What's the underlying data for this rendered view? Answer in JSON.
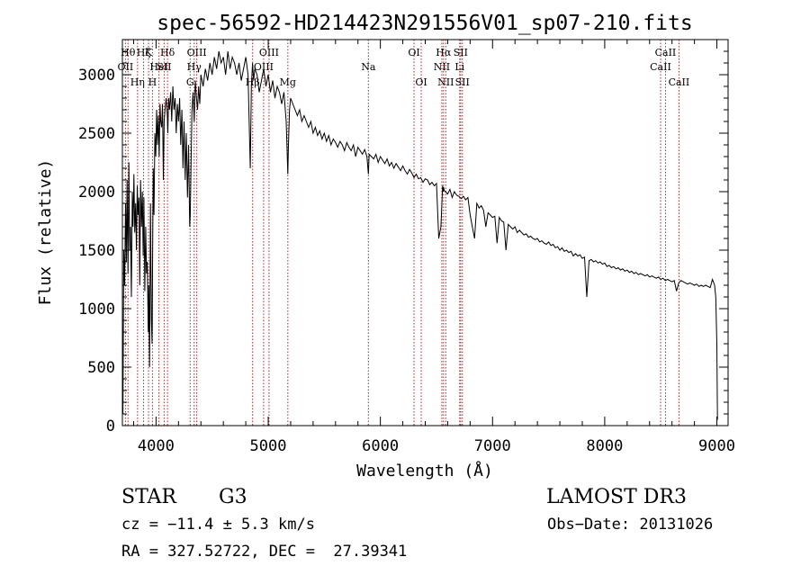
{
  "chart_data": {
    "type": "line",
    "title": "spec-56592-HD214423N291556V01_sp07-210.fits",
    "xlabel": "Wavelength (Å)",
    "ylabel": "Flux (relative)",
    "xlim": [
      3700,
      9100
    ],
    "ylim": [
      0,
      3300
    ],
    "xticks": [
      4000,
      5000,
      6000,
      7000,
      8000,
      9000
    ],
    "yticks": [
      0,
      500,
      1000,
      1500,
      2000,
      2500,
      3000
    ],
    "grid": false,
    "series": [
      {
        "name": "spectrum",
        "x": [
          3700,
          3705,
          3712,
          3720,
          3728,
          3735,
          3742,
          3750,
          3758,
          3765,
          3772,
          3780,
          3788,
          3795,
          3803,
          3810,
          3818,
          3825,
          3832,
          3840,
          3848,
          3855,
          3862,
          3870,
          3878,
          3885,
          3892,
          3900,
          3908,
          3915,
          3922,
          3930,
          3935,
          3942,
          3950,
          3958,
          3965,
          3970,
          3975,
          3982,
          3990,
          3998,
          4005,
          4012,
          4020,
          4028,
          4035,
          4042,
          4050,
          4058,
          4065,
          4072,
          4080,
          4090,
          4100,
          4105,
          4112,
          4120,
          4130,
          4140,
          4150,
          4160,
          4170,
          4180,
          4190,
          4200,
          4210,
          4220,
          4230,
          4240,
          4250,
          4260,
          4270,
          4280,
          4290,
          4300,
          4305,
          4310,
          4320,
          4330,
          4340,
          4350,
          4360,
          4370,
          4380,
          4390,
          4400,
          4420,
          4440,
          4460,
          4480,
          4500,
          4520,
          4540,
          4560,
          4580,
          4600,
          4620,
          4640,
          4660,
          4680,
          4700,
          4720,
          4740,
          4760,
          4780,
          4800,
          4820,
          4840,
          4850,
          4860,
          4870,
          4880,
          4900,
          4920,
          4940,
          4960,
          4980,
          5000,
          5020,
          5040,
          5060,
          5080,
          5100,
          5120,
          5140,
          5160,
          5170,
          5175,
          5180,
          5190,
          5200,
          5220,
          5240,
          5260,
          5280,
          5300,
          5320,
          5340,
          5360,
          5380,
          5400,
          5420,
          5440,
          5460,
          5480,
          5500,
          5520,
          5540,
          5560,
          5580,
          5600,
          5620,
          5640,
          5660,
          5680,
          5700,
          5720,
          5740,
          5760,
          5780,
          5800,
          5820,
          5840,
          5860,
          5880,
          5893,
          5900,
          5920,
          5940,
          5960,
          5980,
          6000,
          6020,
          6040,
          6060,
          6080,
          6100,
          6120,
          6140,
          6160,
          6180,
          6200,
          6220,
          6240,
          6260,
          6280,
          6300,
          6320,
          6340,
          6360,
          6380,
          6400,
          6420,
          6440,
          6460,
          6480,
          6500,
          6520,
          6540,
          6555,
          6560,
          6563,
          6570,
          6580,
          6600,
          6620,
          6640,
          6660,
          6680,
          6700,
          6720,
          6740,
          6760,
          6780,
          6800,
          6820,
          6840,
          6860,
          6870,
          6880,
          6900,
          6920,
          6940,
          6960,
          6980,
          7000,
          7020,
          7040,
          7060,
          7080,
          7100,
          7120,
          7140,
          7160,
          7180,
          7200,
          7220,
          7240,
          7260,
          7280,
          7300,
          7320,
          7340,
          7360,
          7380,
          7400,
          7420,
          7440,
          7460,
          7480,
          7500,
          7520,
          7540,
          7560,
          7580,
          7600,
          7620,
          7640,
          7660,
          7680,
          7700,
          7720,
          7740,
          7760,
          7780,
          7800,
          7820,
          7840,
          7860,
          7880,
          7900,
          7920,
          7940,
          7960,
          7980,
          8000,
          8020,
          8040,
          8060,
          8080,
          8100,
          8120,
          8140,
          8160,
          8180,
          8200,
          8220,
          8240,
          8260,
          8280,
          8300,
          8320,
          8340,
          8360,
          8380,
          8400,
          8420,
          8440,
          8460,
          8480,
          8500,
          8520,
          8540,
          8560,
          8580,
          8600,
          8620,
          8640,
          8660,
          8680,
          8700,
          8720,
          8740,
          8760,
          8780,
          8800,
          8820,
          8840,
          8860,
          8880,
          8900,
          8920,
          8940,
          8960,
          8980,
          8990,
          9000,
          9005
        ],
        "y": [
          900,
          100,
          1500,
          1200,
          1900,
          1400,
          2100,
          1300,
          2250,
          1500,
          1700,
          1100,
          2000,
          1700,
          2150,
          1650,
          1900,
          1500,
          2050,
          1800,
          1950,
          1200,
          2100,
          1700,
          2000,
          1450,
          1950,
          1150,
          1700,
          1300,
          1400,
          800,
          1200,
          500,
          1900,
          900,
          700,
          1600,
          2200,
          1800,
          2500,
          2300,
          2700,
          2400,
          2650,
          2300,
          2750,
          2600,
          2550,
          2750,
          2100,
          2600,
          2700,
          2800,
          2650,
          2500,
          2800,
          2700,
          2850,
          2600,
          2900,
          2700,
          2800,
          2500,
          2750,
          2600,
          2800,
          2400,
          2700,
          2200,
          2600,
          2100,
          2500,
          1950,
          2400,
          1700,
          1800,
          2100,
          2700,
          2850,
          2600,
          2950,
          2800,
          2700,
          2900,
          2750,
          3000,
          2900,
          3050,
          2950,
          3100,
          3000,
          3150,
          3050,
          3200,
          3100,
          3150,
          3000,
          3200,
          3050,
          3150,
          3100,
          3000,
          3100,
          2950,
          3050,
          3150,
          3000,
          2200,
          2900,
          3100,
          2950,
          3050,
          3000,
          2850,
          2950,
          3050,
          2900,
          3000,
          2850,
          2950,
          2800,
          2900,
          2850,
          2750,
          2850,
          2600,
          2300,
          2150,
          2400,
          2700,
          2800,
          2750,
          2700,
          2650,
          2700,
          2600,
          2650,
          2600,
          2550,
          2600,
          2500,
          2550,
          2480,
          2520,
          2450,
          2500,
          2430,
          2480,
          2400,
          2450,
          2420,
          2380,
          2430,
          2400,
          2350,
          2420,
          2380,
          2350,
          2400,
          2300,
          2380,
          2350,
          2320,
          2360,
          2300,
          2150,
          2320,
          2300,
          2280,
          2320,
          2250,
          2300,
          2270,
          2240,
          2280,
          2220,
          2250,
          2200,
          2240,
          2210,
          2180,
          2220,
          2180,
          2150,
          2190,
          2160,
          2120,
          2150,
          2110,
          2120,
          2080,
          2110,
          2100,
          2060,
          2080,
          2050,
          2070,
          1600,
          1700,
          2050,
          2000,
          2040,
          2010,
          2000,
          1980,
          2020,
          1950,
          2000,
          1970,
          1960,
          1940,
          1960,
          1930,
          1950,
          1800,
          1700,
          1600,
          1900,
          1880,
          1860,
          1880,
          1840,
          1700,
          1820,
          1800,
          1780,
          1790,
          1560,
          1780,
          1750,
          1740,
          1500,
          1720,
          1700,
          1680,
          1700,
          1650,
          1670,
          1650,
          1630,
          1640,
          1610,
          1620,
          1600,
          1590,
          1600,
          1570,
          1580,
          1560,
          1550,
          1570,
          1540,
          1550,
          1520,
          1530,
          1500,
          1520,
          1490,
          1500,
          1480,
          1490,
          1450,
          1470,
          1450,
          1460,
          1430,
          1440,
          1100,
          1410,
          1420,
          1400,
          1410,
          1390,
          1400,
          1380,
          1390,
          1360,
          1370,
          1350,
          1360,
          1340,
          1350,
          1330,
          1340,
          1320,
          1330,
          1310,
          1320,
          1300,
          1310,
          1290,
          1300,
          1290,
          1280,
          1290,
          1270,
          1280,
          1270,
          1260,
          1270,
          1250,
          1260,
          1240,
          1250,
          1240,
          1230,
          1240,
          1150,
          1220,
          1240,
          1230,
          1220,
          1210,
          1220,
          1210,
          1200,
          1210,
          1190,
          1200,
          1190,
          1200,
          1190,
          1180,
          1250,
          1200,
          1100,
          700,
          50
        ]
      }
    ],
    "lines": [
      {
        "x": 3727,
        "labels": [
          {
            "text": "OII",
            "row": 2
          }
        ]
      },
      {
        "x": 3750,
        "labels": [
          {
            "text": "Hθ",
            "row": 1
          }
        ]
      },
      {
        "x": 3835,
        "labels": [
          {
            "text": "Hη",
            "row": 3
          }
        ]
      },
      {
        "x": 3889,
        "labels": [
          {
            "text": "Hζ",
            "row": 1
          }
        ]
      },
      {
        "x": 3933,
        "labels": [
          {
            "text": "K",
            "row": 1
          }
        ]
      },
      {
        "x": 3968,
        "labels": [
          {
            "text": "H",
            "row": 3
          }
        ]
      },
      {
        "x": 4026,
        "labels": [
          {
            "text": "HeI",
            "row": 2
          }
        ]
      },
      {
        "x": 4072,
        "labels": [
          {
            "text": "SII",
            "row": 2
          }
        ]
      },
      {
        "x": 4102,
        "labels": [
          {
            "text": "Hδ",
            "row": 1
          }
        ]
      },
      {
        "x": 4304,
        "labels": [
          {
            "text": "G",
            "row": 3
          }
        ]
      },
      {
        "x": 4340,
        "labels": [
          {
            "text": "Hγ",
            "row": 2
          }
        ]
      },
      {
        "x": 4363,
        "labels": [
          {
            "text": "OIII",
            "row": 1
          }
        ]
      },
      {
        "x": 4861,
        "labels": [
          {
            "text": "Hβ",
            "row": 3
          }
        ]
      },
      {
        "x": 4959,
        "labels": [
          {
            "text": "OIII",
            "row": 2
          }
        ]
      },
      {
        "x": 5007,
        "labels": [
          {
            "text": "OIII",
            "row": 1
          }
        ]
      },
      {
        "x": 5175,
        "labels": [
          {
            "text": "Mg",
            "row": 3
          }
        ]
      },
      {
        "x": 5893,
        "labels": [
          {
            "text": "Na",
            "row": 2
          }
        ]
      },
      {
        "x": 6300,
        "labels": [
          {
            "text": "OI",
            "row": 1
          }
        ]
      },
      {
        "x": 6364,
        "labels": [
          {
            "text": "OI",
            "row": 3
          }
        ]
      },
      {
        "x": 6548,
        "labels": [
          {
            "text": "NII",
            "row": 2
          }
        ]
      },
      {
        "x": 6563,
        "labels": [
          {
            "text": "Hα",
            "row": 1
          }
        ]
      },
      {
        "x": 6583,
        "labels": [
          {
            "text": "NII",
            "row": 3
          }
        ]
      },
      {
        "x": 6707,
        "labels": [
          {
            "text": "Li",
            "row": 2
          }
        ]
      },
      {
        "x": 6716,
        "labels": [
          {
            "text": "SII",
            "row": 1
          }
        ]
      },
      {
        "x": 6731,
        "labels": [
          {
            "text": "SII",
            "row": 3
          }
        ]
      },
      {
        "x": 8498,
        "labels": [
          {
            "text": "CaII",
            "row": 2
          }
        ]
      },
      {
        "x": 8542,
        "labels": [
          {
            "text": "CaII",
            "row": 1
          }
        ]
      },
      {
        "x": 8662,
        "labels": [
          {
            "text": "CaII",
            "row": 3
          }
        ]
      }
    ]
  },
  "info": {
    "object_class": "STAR",
    "subclass": "G3",
    "survey": "LAMOST DR3",
    "cz": "cz = −11.4 ± 5.3 km/s",
    "obs_date": "Obs−Date: 20131026",
    "coords": "RA = 327.52722, DEC =  27.39341"
  },
  "colors": {
    "axis": "#000000",
    "spectrum": "#000000",
    "line_marker": "#b22222"
  }
}
